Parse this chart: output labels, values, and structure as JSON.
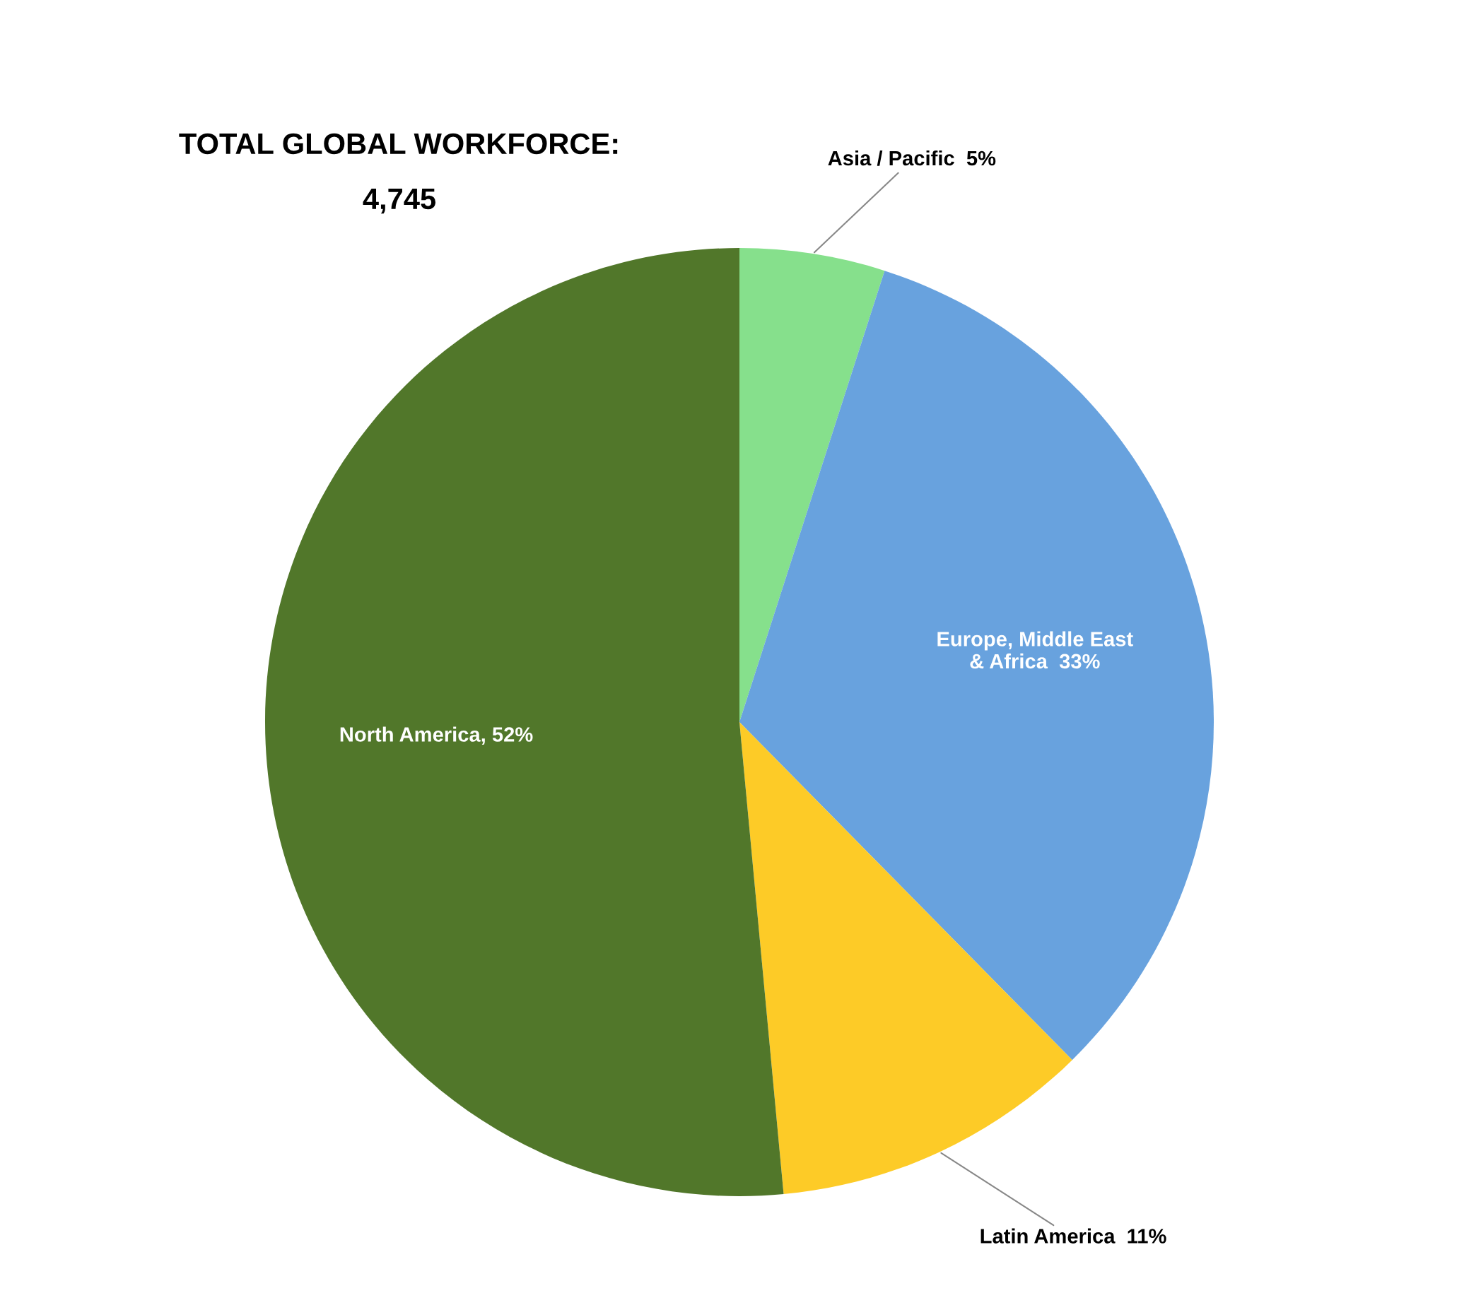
{
  "chart_data": {
    "type": "pie",
    "title": "TOTAL GLOBAL WORKFORCE:",
    "subtitle": "4,745",
    "categories": [
      "Asia / Pacific",
      "Europe, Middle East\n& Africa",
      "Latin America",
      "North America"
    ],
    "values": [
      5,
      33,
      11,
      52
    ],
    "value_labels": [
      "5%",
      "33%",
      "11%",
      "52%"
    ],
    "colors": [
      "#86e08c",
      "#68a2de",
      "#fdcb27",
      "#51772a"
    ],
    "legend": false
  }
}
